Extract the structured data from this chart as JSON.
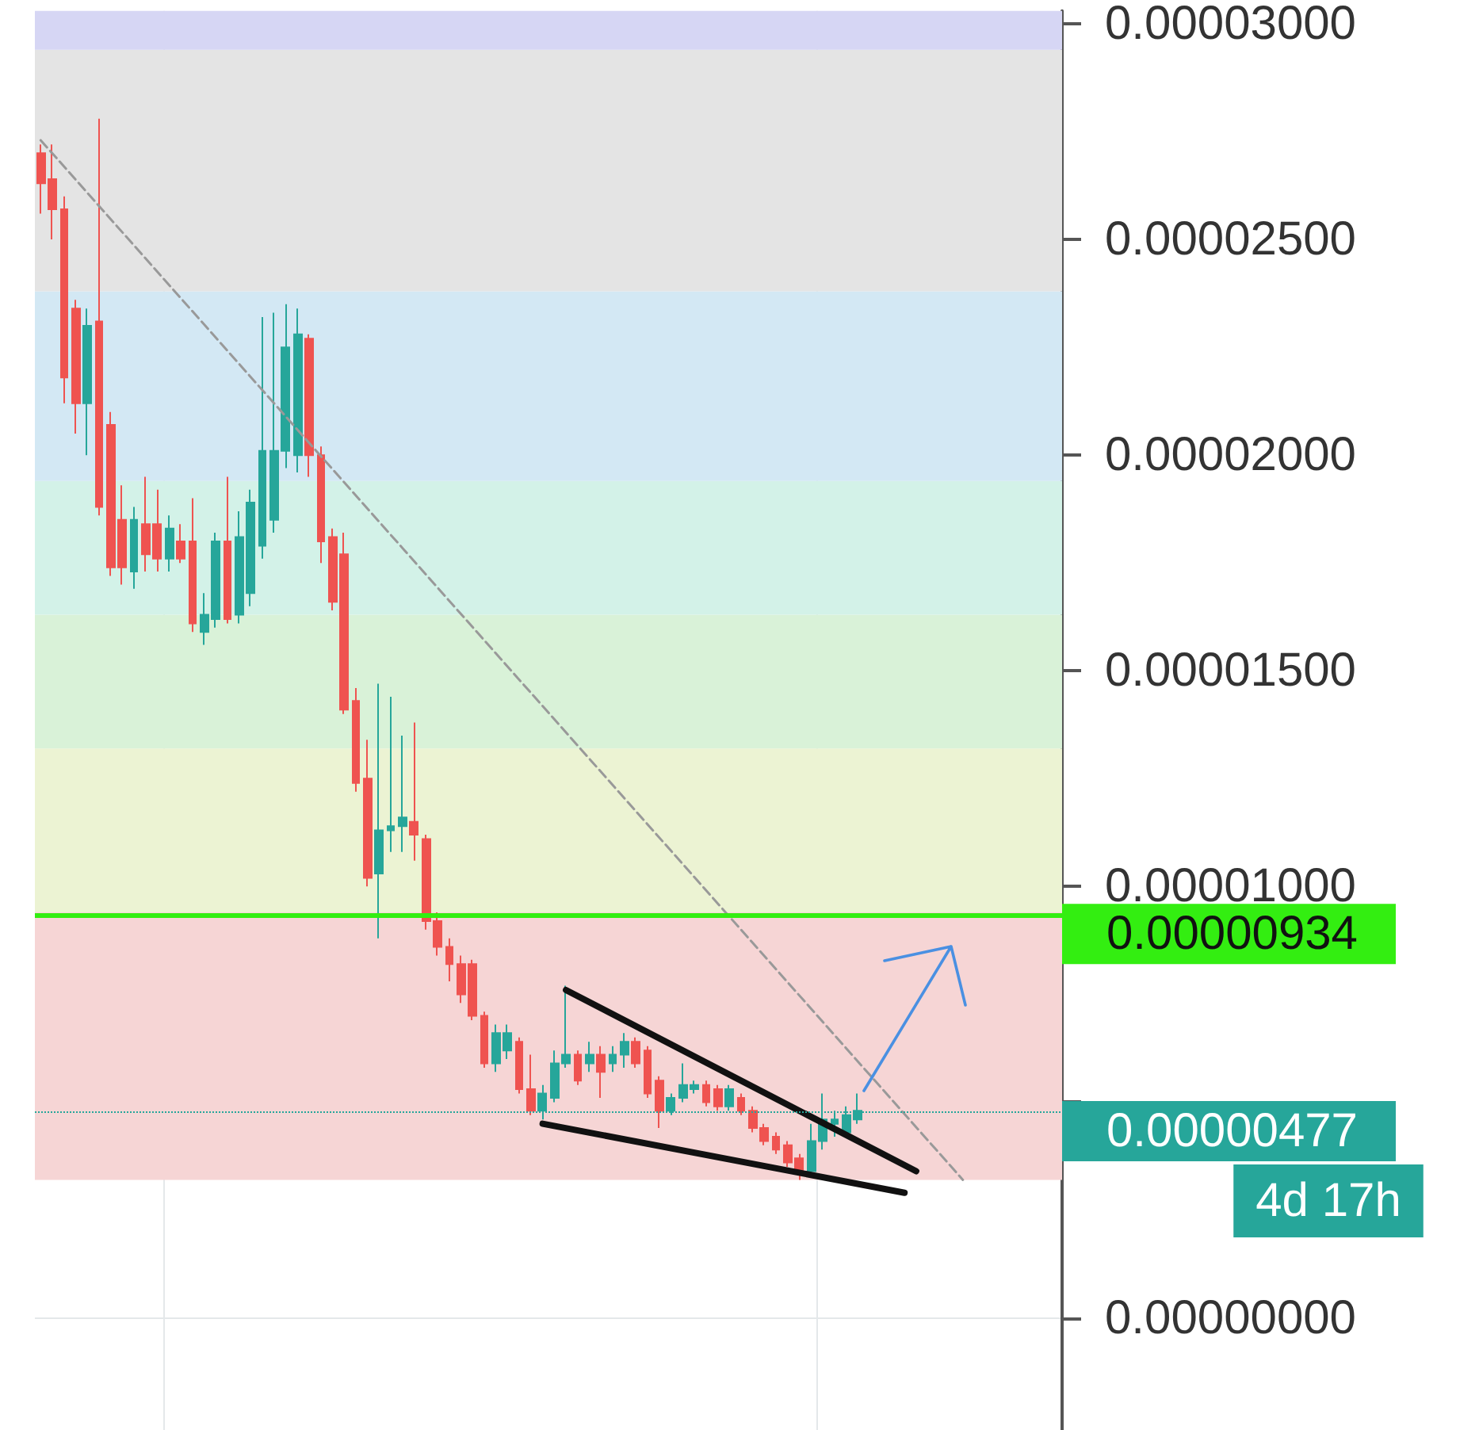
{
  "chart_data": {
    "type": "candlestick",
    "categories": [
      null,
      null,
      null,
      null,
      null,
      null,
      null,
      null,
      null,
      null,
      null,
      null,
      null,
      null,
      null,
      null,
      null,
      null,
      null,
      null,
      null,
      null,
      null,
      null,
      null,
      null,
      null,
      null,
      null,
      null,
      null,
      null,
      null,
      null,
      null,
      null,
      null,
      null,
      null,
      null,
      null,
      null,
      null,
      null,
      null,
      null,
      null,
      null,
      null,
      null,
      null,
      null,
      null,
      null,
      null,
      null,
      null,
      null,
      null,
      null,
      null,
      null,
      null,
      null,
      null,
      null,
      null,
      null,
      null,
      null,
      null,
      null,
      null,
      null,
      null,
      null,
      null,
      null,
      null,
      null,
      null,
      null,
      null,
      null,
      null,
      null,
      null,
      null
    ],
    "series": [
      {
        "type": "candlestick",
        "ohlc": [
          [
            2.7e-05,
            2.72e-05,
            2.56e-05,
            2.63e-05
          ],
          [
            2.64e-05,
            2.72e-05,
            2.5e-05,
            2.57e-05
          ],
          [
            2.57e-05,
            2.6e-05,
            2.12e-05,
            2.18e-05
          ],
          [
            2.34e-05,
            2.36e-05,
            2.05e-05,
            2.12e-05
          ],
          [
            2.12e-05,
            2.34e-05,
            2e-05,
            2.3e-05
          ],
          [
            2.31e-05,
            2.78e-05,
            1.86e-05,
            1.88e-05
          ],
          [
            2.07e-05,
            2.1e-05,
            1.72e-05,
            1.74e-05
          ],
          [
            1.85e-05,
            1.93e-05,
            1.7e-05,
            1.74e-05
          ],
          [
            1.73e-05,
            1.88e-05,
            1.69e-05,
            1.85e-05
          ],
          [
            1.84e-05,
            1.95e-05,
            1.73e-05,
            1.77e-05
          ],
          [
            1.84e-05,
            1.92e-05,
            1.73e-05,
            1.76e-05
          ],
          [
            1.76e-05,
            1.86e-05,
            1.73e-05,
            1.83e-05
          ],
          [
            1.8e-05,
            1.84e-05,
            1.75e-05,
            1.76e-05
          ],
          [
            1.8e-05,
            1.9e-05,
            1.59e-05,
            1.61e-05
          ],
          [
            1.59e-05,
            1.68e-05,
            1.56e-05,
            1.63e-05
          ],
          [
            1.62e-05,
            1.82e-05,
            1.6e-05,
            1.8e-05
          ],
          [
            1.8e-05,
            1.95e-05,
            1.61e-05,
            1.62e-05
          ],
          [
            1.63e-05,
            1.87e-05,
            1.61e-05,
            1.81e-05
          ],
          [
            1.68e-05,
            1.92e-05,
            1.65e-05,
            1.89e-05
          ],
          [
            1.79e-05,
            2.32e-05,
            1.76e-05,
            2.01e-05
          ],
          [
            1.85e-05,
            2.33e-05,
            1.82e-05,
            2.01e-05
          ],
          [
            2.01e-05,
            2.35e-05,
            1.97e-05,
            2.25e-05
          ],
          [
            2e-05,
            2.34e-05,
            1.96e-05,
            2.28e-05
          ],
          [
            2.27e-05,
            2.28e-05,
            1.95e-05,
            2e-05
          ],
          [
            2e-05,
            2.02e-05,
            1.75e-05,
            1.8e-05
          ],
          [
            1.81e-05,
            1.83e-05,
            1.64e-05,
            1.66e-05
          ],
          [
            1.77e-05,
            1.82e-05,
            1.4e-05,
            1.41e-05
          ],
          [
            1.43e-05,
            1.46e-05,
            1.22e-05,
            1.24e-05
          ],
          [
            1.25e-05,
            1.34e-05,
            1e-05,
            1.02e-05
          ],
          [
            1.03e-05,
            1.47e-05,
            8.8e-06,
            1.13e-05
          ],
          [
            1.13e-05,
            1.44e-05,
            1.08e-05,
            1.14e-05
          ],
          [
            1.14e-05,
            1.35e-05,
            1.08e-05,
            1.16e-05
          ],
          [
            1.15e-05,
            1.38e-05,
            1.06e-05,
            1.12e-05
          ],
          [
            1.11e-05,
            1.12e-05,
            9e-06,
            9.2e-06
          ],
          [
            9.2e-06,
            9.4e-06,
            8.4e-06,
            8.6e-06
          ],
          [
            8.6e-06,
            8.8e-06,
            7.8e-06,
            8.2e-06
          ],
          [
            8.2e-06,
            8.4e-06,
            7.3e-06,
            7.5e-06
          ],
          [
            8.2e-06,
            8.3e-06,
            6.9e-06,
            7e-06
          ],
          [
            7e-06,
            7.1e-06,
            5.8e-06,
            5.9e-06
          ],
          [
            5.9e-06,
            6.8e-06,
            5.7e-06,
            6.6e-06
          ],
          [
            6.2e-06,
            6.8e-06,
            6e-06,
            6.6e-06
          ],
          [
            6.4e-06,
            6.5e-06,
            5.2e-06,
            5.3e-06
          ],
          [
            5.3e-06,
            6.1e-06,
            4.7e-06,
            4.8e-06
          ],
          [
            4.8e-06,
            5.4e-06,
            4.6e-06,
            5.2e-06
          ],
          [
            5.1e-06,
            6.2e-06,
            5e-06,
            5.9e-06
          ],
          [
            5.9e-06,
            7.7e-06,
            5.8e-06,
            6.1e-06
          ],
          [
            6.1e-06,
            6.2e-06,
            5.4e-06,
            5.5e-06
          ],
          [
            5.9e-06,
            6.4e-06,
            5.7e-06,
            6.1e-06
          ],
          [
            6.1e-06,
            6.3e-06,
            5.1e-06,
            5.7e-06
          ],
          [
            5.9e-06,
            6.3e-06,
            5.7e-06,
            6.1e-06
          ],
          [
            6.1e-06,
            6.6e-06,
            5.8e-06,
            6.4e-06
          ],
          [
            6.4e-06,
            6.5e-06,
            5.8e-06,
            5.9e-06
          ],
          [
            6.2e-06,
            6.3e-06,
            5.1e-06,
            5.2e-06
          ],
          [
            5.5e-06,
            5.6e-06,
            4.4e-06,
            4.8e-06
          ],
          [
            4.8e-06,
            5.2e-06,
            4.7e-06,
            5.1e-06
          ],
          [
            5.1e-06,
            5.9e-06,
            5e-06,
            5.4e-06
          ],
          [
            5.3e-06,
            5.5e-06,
            5.2e-06,
            5.4e-06
          ],
          [
            5.4e-06,
            5.5e-06,
            4.9e-06,
            5e-06
          ],
          [
            5.3e-06,
            5.4e-06,
            4.8e-06,
            4.9e-06
          ],
          [
            4.9e-06,
            5.4e-06,
            4.8e-06,
            5.3e-06
          ],
          [
            5.1e-06,
            5.2e-06,
            4.7e-06,
            4.8e-06
          ],
          [
            4.8e-06,
            4.9e-06,
            4.3e-06,
            4.4e-06
          ],
          [
            4.4e-06,
            4.5e-06,
            4e-06,
            4.1e-06
          ],
          [
            4.2e-06,
            4.3e-06,
            3.8e-06,
            3.9e-06
          ],
          [
            4e-06,
            4.1e-06,
            3.5e-06,
            3.6e-06
          ],
          [
            3.7e-06,
            3.8e-06,
            3.2e-06,
            3.4e-06
          ],
          [
            3.4e-06,
            4.5e-06,
            3.3e-06,
            4.1e-06
          ],
          [
            4.1e-06,
            5.2e-06,
            3.9e-06,
            4.6e-06
          ],
          [
            4.5e-06,
            4.8e-06,
            4.2e-06,
            4.6e-06
          ],
          [
            4.3e-06,
            4.9e-06,
            4.2e-06,
            4.7e-06
          ],
          [
            4.6e-06,
            5.2e-06,
            4.5e-06,
            4.8e-06
          ],
          null,
          null,
          null,
          null,
          null,
          null,
          null,
          null,
          null,
          null,
          null,
          null,
          null,
          null,
          null,
          null,
          null
        ],
        "colors": [
          "#ef5350",
          "#ef5350",
          "#ef5350",
          "#ef5350",
          "#26a69a",
          "#ef5350",
          "#ef5350",
          "#ef5350",
          "#26a69a",
          "#ef5350",
          "#ef5350",
          "#26a69a",
          "#ef5350",
          "#ef5350",
          "#26a69a",
          "#26a69a",
          "#ef5350",
          "#26a69a",
          "#26a69a",
          "#26a69a",
          "#26a69a",
          "#26a69a",
          "#26a69a",
          "#ef5350",
          "#ef5350",
          "#ef5350",
          "#ef5350",
          "#ef5350",
          "#ef5350",
          "#26a69a",
          "#26a69a",
          "#26a69a",
          "#ef5350",
          "#ef5350",
          "#ef5350",
          "#ef5350",
          "#ef5350",
          "#ef5350",
          "#ef5350",
          "#26a69a",
          "#26a69a",
          "#ef5350",
          "#ef5350",
          "#26a69a",
          "#26a69a",
          "#26a69a",
          "#ef5350",
          "#26a69a",
          "#ef5350",
          "#26a69a",
          "#26a69a",
          "#ef5350",
          "#ef5350",
          "#ef5350",
          "#26a69a",
          "#26a69a",
          "#26a69a",
          "#ef5350",
          "#ef5350",
          "#26a69a",
          "#ef5350",
          "#ef5350",
          "#ef5350",
          "#ef5350",
          "#ef5350",
          "#ef5350",
          "#26a69a",
          "#26a69a",
          "#26a69a",
          "#26a69a",
          "#26a69a",
          null,
          null,
          null,
          null,
          null,
          null,
          null,
          null,
          null,
          null,
          null,
          null,
          null,
          null,
          null,
          null,
          null
        ]
      },
      {
        "type": "line",
        "color": "#111111",
        "values": [
          null,
          null,
          null,
          null,
          null,
          null,
          null,
          null,
          null,
          null,
          null,
          null,
          null,
          null,
          null,
          null,
          null,
          null,
          null,
          null,
          null,
          null,
          null,
          null,
          null,
          null,
          null,
          null,
          null,
          null,
          null,
          null,
          null,
          null,
          null,
          null,
          null,
          null,
          null,
          null,
          null,
          null,
          null,
          null,
          null,
          7.6e-06,
          null,
          null,
          null,
          null,
          null,
          null,
          null,
          null,
          null,
          null,
          null,
          null,
          null,
          null,
          null,
          null,
          null,
          null,
          null,
          null,
          null,
          null,
          null,
          null,
          null,
          null,
          null,
          null,
          null,
          3.4e-06,
          null,
          null,
          null,
          null,
          null,
          null,
          null,
          null,
          null,
          null,
          null,
          null
        ]
      },
      {
        "type": "line",
        "color": "#111111",
        "values": [
          null,
          null,
          null,
          null,
          null,
          null,
          null,
          null,
          null,
          null,
          null,
          null,
          null,
          null,
          null,
          null,
          null,
          null,
          null,
          null,
          null,
          null,
          null,
          null,
          null,
          null,
          null,
          null,
          null,
          null,
          null,
          null,
          null,
          null,
          null,
          null,
          null,
          null,
          null,
          null,
          null,
          null,
          null,
          4.5e-06,
          null,
          null,
          null,
          null,
          null,
          null,
          null,
          null,
          null,
          null,
          null,
          null,
          null,
          null,
          null,
          null,
          null,
          null,
          null,
          null,
          null,
          null,
          null,
          null,
          null,
          null,
          null,
          null,
          null,
          null,
          2.9e-06,
          null,
          null,
          null,
          null,
          null,
          null,
          null,
          null,
          null,
          null,
          null,
          null,
          null
        ]
      },
      {
        "type": "line",
        "color": "#999999",
        "line_style": "dashed",
        "values": [
          2.73e-05,
          null,
          null,
          null,
          null,
          null,
          null,
          null,
          null,
          null,
          null,
          null,
          null,
          null,
          null,
          null,
          null,
          null,
          null,
          null,
          null,
          null,
          null,
          null,
          null,
          null,
          null,
          null,
          null,
          null,
          null,
          null,
          null,
          null,
          null,
          null,
          null,
          null,
          null,
          null,
          null,
          null,
          null,
          null,
          null,
          null,
          null,
          null,
          null,
          null,
          null,
          null,
          null,
          null,
          null,
          null,
          null,
          null,
          null,
          null,
          null,
          null,
          null,
          null,
          null,
          null,
          null,
          null,
          null,
          null,
          null,
          null,
          null,
          null,
          null,
          null,
          null,
          null,
          null,
          3.2e-06,
          null,
          null,
          null,
          null,
          null,
          null,
          null,
          null
        ]
      }
    ],
    "ylim": [
      -2.6e-06,
      3.03e-05
    ],
    "yticks": [
      {
        "value": 0,
        "label": "0.00000000"
      },
      {
        "value": 5e-06,
        "label": null
      },
      {
        "value": 1e-05,
        "label": "0.00001000"
      },
      {
        "value": 1.5e-05,
        "label": "0.00001500"
      },
      {
        "value": 2e-05,
        "label": "0.00002000"
      },
      {
        "value": 2.5e-05,
        "label": "0.00002500"
      },
      {
        "value": 3e-05,
        "label": "0.00003000"
      }
    ],
    "tick_labels": "y",
    "grid": true,
    "bands": [
      {
        "axis": "y",
        "from": 3.2e-06,
        "to": 9.4e-06,
        "color": "#f6d5d5"
      },
      {
        "axis": "y",
        "from": 9.4e-06,
        "to": 1.32e-05,
        "color": "#ecf3d3"
      },
      {
        "axis": "y",
        "from": 1.32e-05,
        "to": 1.63e-05,
        "color": "#d9f2d8"
      },
      {
        "axis": "y",
        "from": 1.63e-05,
        "to": 1.94e-05,
        "color": "#d3f2e8"
      },
      {
        "axis": "y",
        "from": 1.94e-05,
        "to": 2.38e-05,
        "color": "#d3e8f4"
      },
      {
        "axis": "y",
        "from": 2.38e-05,
        "to": 2.94e-05,
        "color": "#e4e4e4"
      },
      {
        "axis": "y",
        "from": 2.94e-05,
        "to": 3.03e-05,
        "color": "#d6d6f4"
      }
    ],
    "ref_lines": [
      {
        "axis": "y",
        "value": 9.34e-06,
        "label": "0.00000934",
        "color": "#33ee11",
        "line_style": "solid"
      },
      {
        "axis": "y",
        "value": 4.77e-06,
        "label": "0.00000477",
        "color": "#26a69a",
        "line_style": "dotted"
      }
    ],
    "annotations": [
      "4d 17h"
    ]
  }
}
